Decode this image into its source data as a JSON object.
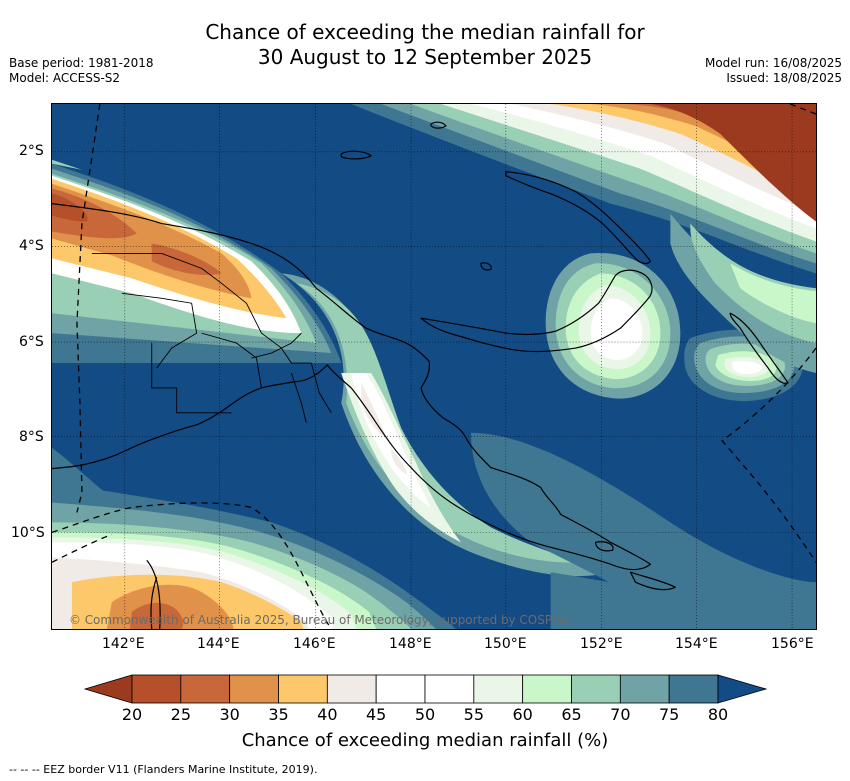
{
  "title_line1": "Chance of exceeding the median rainfall for",
  "title_line2": "30 August to 12 September 2025",
  "meta_left": [
    "Base period: 1981-2018",
    "Model: ACCESS-S2"
  ],
  "meta_right": [
    "Model run: 16/08/2025",
    "Issued: 18/08/2025"
  ],
  "credit": "© Commonwealth of Australia 2025, Bureau of Meteorology, supported by COSPPac",
  "lat_ticks": [
    "2°S",
    "4°S",
    "6°S",
    "8°S",
    "10°S"
  ],
  "lon_ticks": [
    "142°E",
    "144°E",
    "146°E",
    "148°E",
    "150°E",
    "152°E",
    "154°E",
    "156°E"
  ],
  "colorbar": {
    "title": "Chance of exceeding median rainfall (%)",
    "ticks": [
      "20",
      "25",
      "30",
      "35",
      "40",
      "45",
      "50",
      "55",
      "60",
      "65",
      "70",
      "75",
      "80"
    ],
    "colors": [
      "#9c3a1f",
      "#b5502a",
      "#c8683a",
      "#e0914a",
      "#fdc869",
      "#f0ebe6",
      "#ffffff",
      "#ffffff",
      "#eaf6e8",
      "#c9f7c9",
      "#99cfb4",
      "#6fa3a5",
      "#3f7691",
      "#134b85"
    ]
  },
  "eez_note": "--  --  -- EEZ border V11 (Flanders Marine Institute, 2019)."
}
